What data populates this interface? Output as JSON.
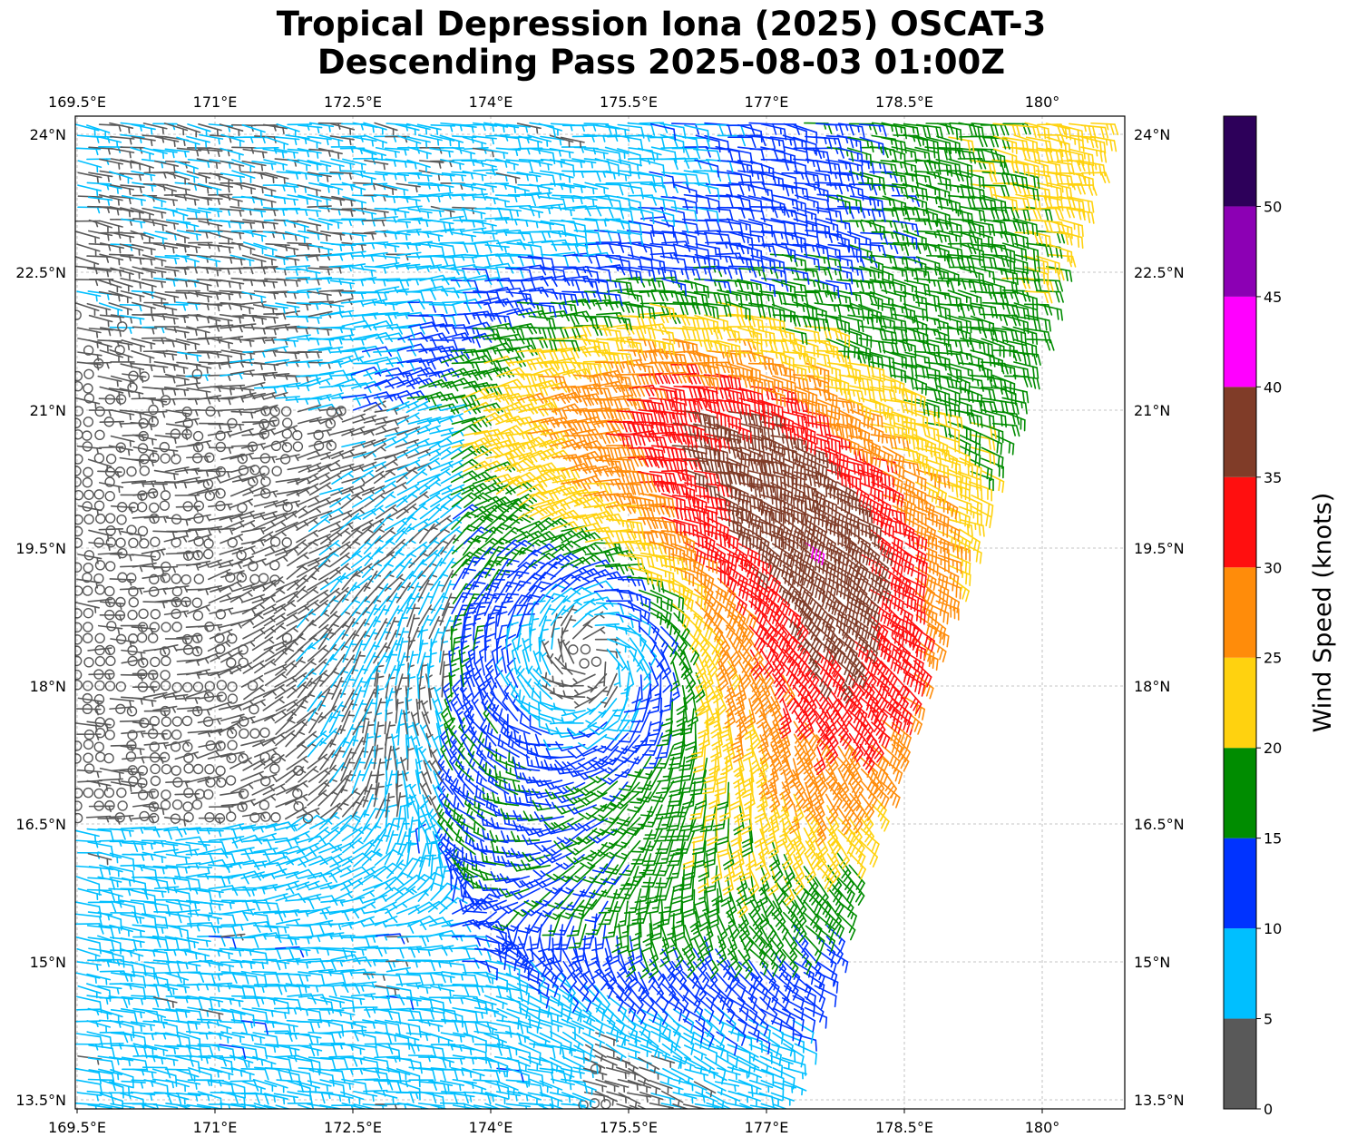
{
  "title": {
    "line1": "Tropical Depression Iona (2025) OSCAT-3",
    "line2": "Descending Pass 2025-08-03 01:00Z"
  },
  "map": {
    "projection": "plate-carree",
    "lon_range": [
      169.5,
      181.0
    ],
    "lat_range": [
      13.4,
      24.2
    ],
    "lon_ticks": [
      {
        "value": 169.5,
        "label": "169.5°E"
      },
      {
        "value": 171.0,
        "label": "171°E"
      },
      {
        "value": 172.5,
        "label": "172.5°E"
      },
      {
        "value": 174.0,
        "label": "174°E"
      },
      {
        "value": 175.5,
        "label": "175.5°E"
      },
      {
        "value": 177.0,
        "label": "177°E"
      },
      {
        "value": 178.5,
        "label": "178.5°E"
      },
      {
        "value": 180.0,
        "label": "180°"
      }
    ],
    "lat_ticks": [
      {
        "value": 13.5,
        "label": "13.5°N"
      },
      {
        "value": 15.0,
        "label": "15°N"
      },
      {
        "value": 16.5,
        "label": "16.5°N"
      },
      {
        "value": 18.0,
        "label": "18°N"
      },
      {
        "value": 19.5,
        "label": "19.5°N"
      },
      {
        "value": 21.0,
        "label": "21°N"
      },
      {
        "value": 22.5,
        "label": "22.5°N"
      },
      {
        "value": 24.0,
        "label": "24°N"
      }
    ],
    "gridlines": true,
    "swath_east_edge": [
      [
        13.4,
        177.1
      ],
      [
        24.1,
        180.6
      ]
    ],
    "circulation_center": {
      "lon": 175.1,
      "lat": 18.3
    }
  },
  "colorbar": {
    "label": "Wind Speed (knots)",
    "range": [
      0,
      55
    ],
    "ticks": [
      "0",
      "5",
      "10",
      "15",
      "20",
      "25",
      "30",
      "35",
      "40",
      "45",
      "50"
    ],
    "bins": [
      {
        "min": 0,
        "max": 5,
        "color": "#595959"
      },
      {
        "min": 5,
        "max": 10,
        "color": "#00bfff"
      },
      {
        "min": 10,
        "max": 15,
        "color": "#0033ff"
      },
      {
        "min": 15,
        "max": 20,
        "color": "#008c00"
      },
      {
        "min": 20,
        "max": 25,
        "color": "#ffd20f"
      },
      {
        "min": 25,
        "max": 30,
        "color": "#ff8c0a"
      },
      {
        "min": 30,
        "max": 35,
        "color": "#ff0f0f"
      },
      {
        "min": 35,
        "max": 40,
        "color": "#803c28"
      },
      {
        "min": 40,
        "max": 45,
        "color": "#ff00ff"
      },
      {
        "min": 45,
        "max": 50,
        "color": "#8c00b4"
      },
      {
        "min": 50,
        "max": 55,
        "color": "#2d005a"
      }
    ]
  }
}
